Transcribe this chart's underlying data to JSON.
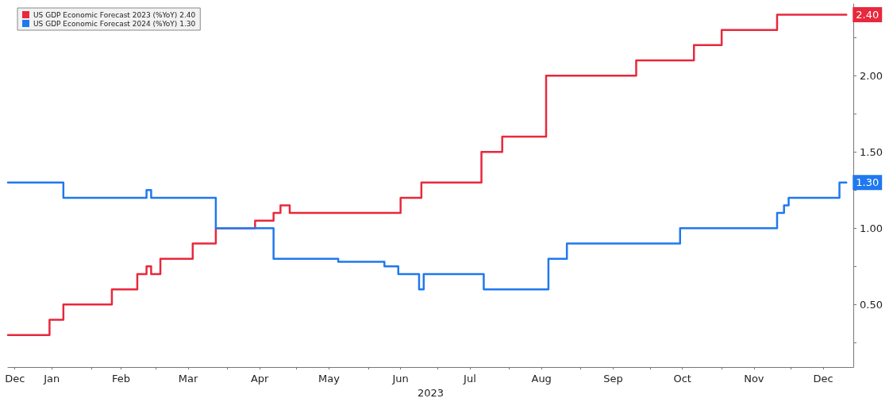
{
  "chart_data": {
    "type": "step",
    "xlabel": "2023",
    "legend": "top left",
    "grid": false,
    "marker": "none",
    "line_style": "solid",
    "xlim": [
      "2022-12-27",
      "2023-12-28"
    ],
    "xticks": [
      {
        "value": "2022-12-30",
        "label": "Dec"
      },
      {
        "value": "2023-01-15",
        "label": "Jan"
      },
      {
        "value": "2023-02-01",
        "label": null
      },
      {
        "value": "2023-02-14",
        "label": "Feb"
      },
      {
        "value": "2023-03-01",
        "label": null
      },
      {
        "value": "2023-03-15",
        "label": "Mar"
      },
      {
        "value": "2023-04-01",
        "label": null
      },
      {
        "value": "2023-04-15",
        "label": "Apr"
      },
      {
        "value": "2023-05-01",
        "label": null
      },
      {
        "value": "2023-05-15",
        "label": "May"
      },
      {
        "value": "2023-06-01",
        "label": null
      },
      {
        "value": "2023-06-15",
        "label": "Jun"
      },
      {
        "value": "2023-07-01",
        "label": null
      },
      {
        "value": "2023-07-15",
        "label": "Jul"
      },
      {
        "value": "2023-08-01",
        "label": null
      },
      {
        "value": "2023-08-15",
        "label": "Aug"
      },
      {
        "value": "2023-09-01",
        "label": null
      },
      {
        "value": "2023-09-15",
        "label": "Sep"
      },
      {
        "value": "2023-10-01",
        "label": null
      },
      {
        "value": "2023-10-15",
        "label": "Oct"
      },
      {
        "value": "2023-11-01",
        "label": null
      },
      {
        "value": "2023-11-15",
        "label": "Nov"
      },
      {
        "value": "2023-12-01",
        "label": null
      },
      {
        "value": "2023-12-15",
        "label": "Dec"
      }
    ],
    "ylim": [
      0.09,
      2.47
    ],
    "yticks": [
      {
        "value": 0.25,
        "label": null
      },
      {
        "value": 0.5,
        "label": "0.50"
      },
      {
        "value": 0.75,
        "label": null
      },
      {
        "value": 1.0,
        "label": "1.00"
      },
      {
        "value": 1.25,
        "label": null
      },
      {
        "value": 1.5,
        "label": "1.50"
      },
      {
        "value": 1.75,
        "label": null
      },
      {
        "value": 2.0,
        "label": "2.00"
      },
      {
        "value": 2.25,
        "label": null
      }
    ],
    "series": [
      {
        "name": "US GDP Economic Forecast 2023 (%YoY) 2.40",
        "color": "#e8283c",
        "x": [
          "2022-12-27",
          "2023-01-14",
          "2023-01-20",
          "2023-02-10",
          "2023-02-21",
          "2023-02-25",
          "2023-02-27",
          "2023-03-03",
          "2023-03-17",
          "2023-03-27",
          "2023-04-13",
          "2023-04-21",
          "2023-04-24",
          "2023-04-28",
          "2023-06-15",
          "2023-06-24",
          "2023-07-20",
          "2023-07-29",
          "2023-08-17",
          "2023-09-25",
          "2023-10-20",
          "2023-11-01",
          "2023-11-25",
          "2023-12-25"
        ],
        "values": [
          0.3,
          0.4,
          0.5,
          0.6,
          0.7,
          0.75,
          0.7,
          0.8,
          0.9,
          1.0,
          1.05,
          1.1,
          1.15,
          1.1,
          1.2,
          1.3,
          1.5,
          1.6,
          2.0,
          2.1,
          2.2,
          2.3,
          2.4,
          2.4
        ],
        "value_labels": [
          null,
          null,
          null,
          null,
          null,
          null,
          null,
          null,
          null,
          null,
          null,
          null,
          null,
          null,
          null,
          null,
          null,
          null,
          null,
          null,
          null,
          null,
          null,
          "2.40"
        ]
      },
      {
        "name": "US GDP Economic Forecast 2024 (%YoY) 1.30",
        "color": "#1f78f0",
        "x": [
          "2022-12-27",
          "2023-01-20",
          "2023-02-25",
          "2023-02-27",
          "2023-03-27",
          "2023-04-21",
          "2023-05-19",
          "2023-06-08",
          "2023-06-14",
          "2023-06-23",
          "2023-06-25",
          "2023-07-21",
          "2023-08-18",
          "2023-08-26",
          "2023-10-14",
          "2023-11-25",
          "2023-11-28",
          "2023-11-30",
          "2023-12-22",
          "2023-12-25"
        ],
        "values": [
          1.3,
          1.2,
          1.25,
          1.2,
          1.0,
          0.8,
          0.78,
          0.75,
          0.7,
          0.6,
          0.7,
          0.6,
          0.8,
          0.9,
          1.0,
          1.1,
          1.15,
          1.2,
          1.3,
          1.3
        ],
        "value_labels": [
          null,
          null,
          null,
          null,
          null,
          null,
          null,
          null,
          null,
          null,
          null,
          null,
          null,
          null,
          null,
          null,
          null,
          null,
          null,
          "1.30"
        ]
      }
    ]
  }
}
